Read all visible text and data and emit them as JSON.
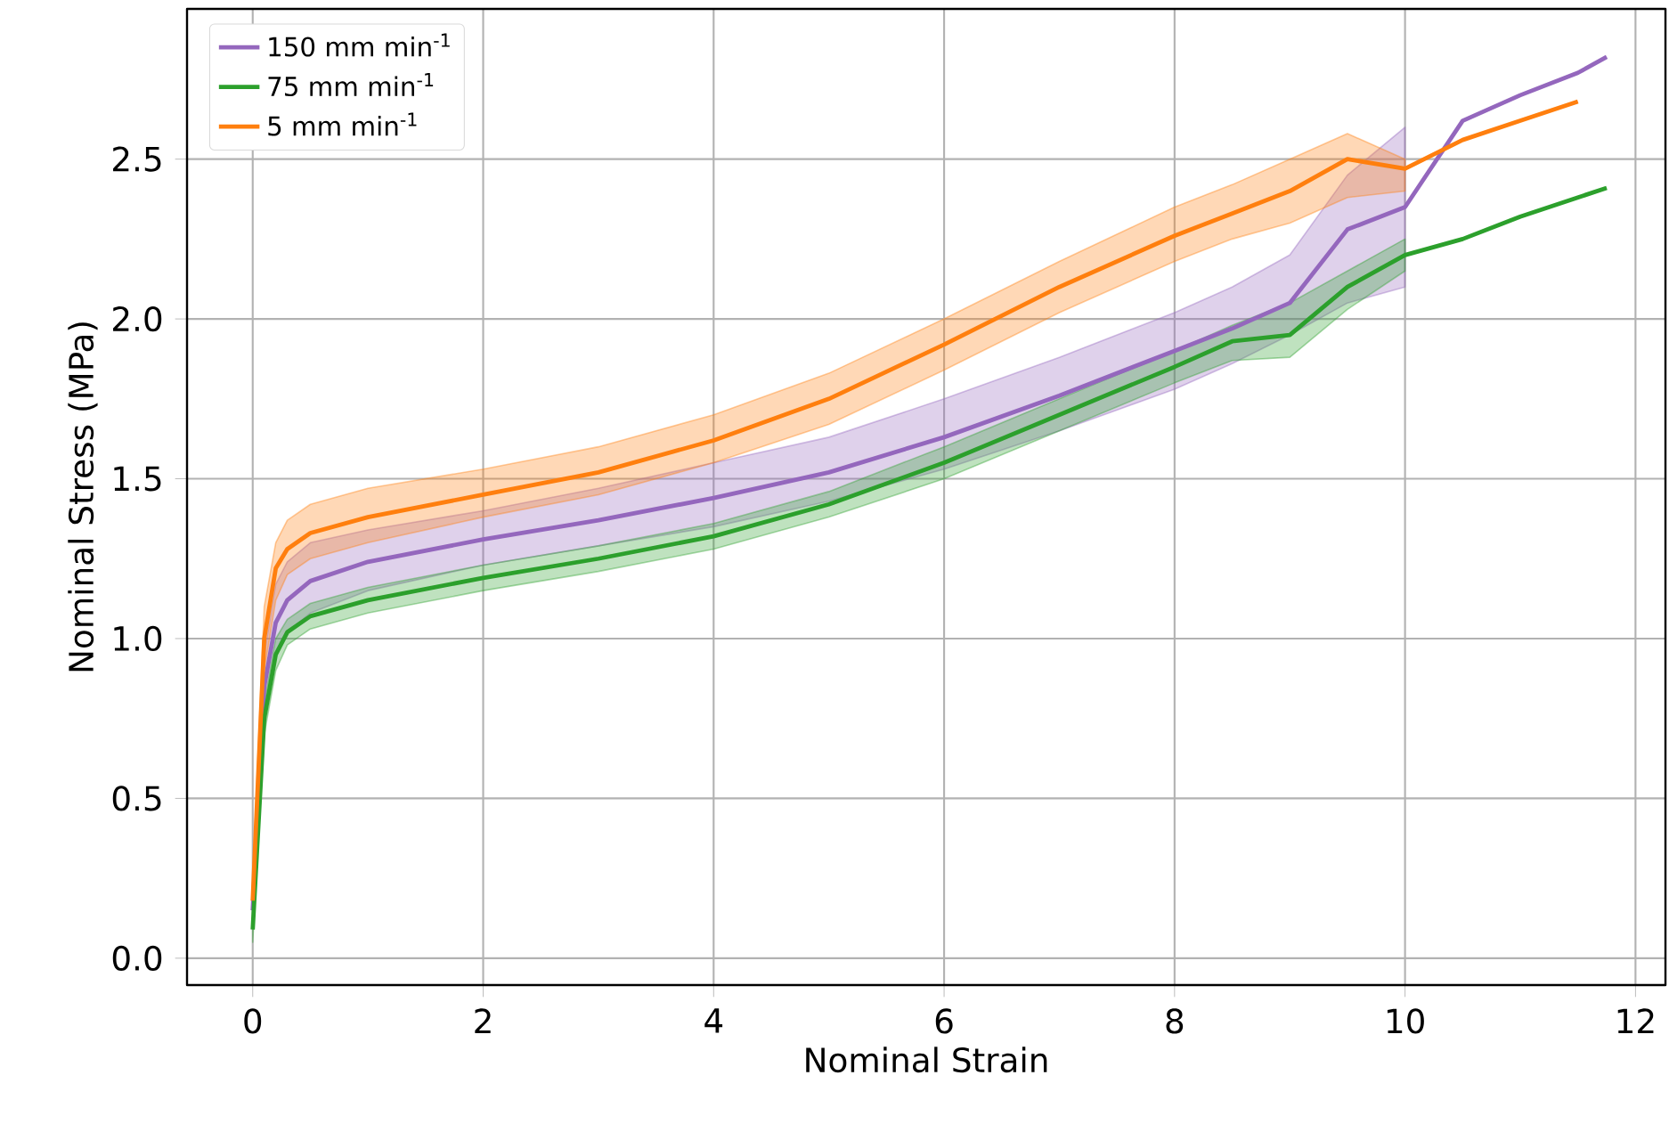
{
  "chart_data": {
    "type": "line",
    "xlabel": "Nominal Strain",
    "ylabel": "Nominal Stress (MPa)",
    "x": [
      0,
      0.1,
      0.2,
      0.3,
      0.5,
      1,
      2,
      3,
      4,
      5,
      6,
      7,
      8,
      8.5,
      9,
      9.5,
      10,
      10.5,
      11,
      11.5,
      11.75
    ],
    "series": [
      {
        "name": "150 mm min$^{-1}$",
        "color": "#9467bd",
        "values": [
          0.15,
          0.85,
          1.05,
          1.12,
          1.18,
          1.24,
          1.31,
          1.37,
          1.44,
          1.52,
          1.63,
          1.76,
          1.9,
          1.97,
          2.05,
          2.28,
          2.35,
          2.62,
          2.7,
          2.77,
          2.82
        ],
        "lower": [
          0.1,
          0.75,
          0.95,
          1.02,
          1.08,
          1.15,
          1.23,
          1.29,
          1.35,
          1.43,
          1.53,
          1.65,
          1.78,
          1.86,
          1.95,
          2.05,
          2.1,
          null,
          null,
          null,
          null
        ],
        "upper": [
          0.2,
          0.95,
          1.17,
          1.24,
          1.3,
          1.34,
          1.4,
          1.47,
          1.55,
          1.63,
          1.75,
          1.88,
          2.02,
          2.1,
          2.2,
          2.45,
          2.6,
          null,
          null,
          null,
          null
        ]
      },
      {
        "name": "75 mm min$^{-1}$",
        "color": "#2ca02c",
        "values": [
          0.09,
          0.75,
          0.95,
          1.02,
          1.07,
          1.12,
          1.19,
          1.25,
          1.32,
          1.42,
          1.55,
          1.7,
          1.85,
          1.93,
          1.95,
          2.1,
          2.2,
          2.25,
          2.32,
          2.38,
          2.41
        ],
        "lower": [
          0.05,
          0.7,
          0.9,
          0.98,
          1.03,
          1.08,
          1.15,
          1.21,
          1.28,
          1.38,
          1.5,
          1.65,
          1.8,
          1.87,
          1.88,
          2.03,
          2.15,
          null,
          null,
          null,
          null
        ],
        "upper": [
          0.13,
          0.8,
          1.0,
          1.06,
          1.11,
          1.16,
          1.23,
          1.29,
          1.36,
          1.46,
          1.6,
          1.75,
          1.9,
          1.98,
          2.05,
          2.15,
          2.25,
          null,
          null,
          null,
          null
        ]
      },
      {
        "name": "5 mm min$^{-1}$",
        "color": "#ff7f0e",
        "x": [
          0,
          0.1,
          0.2,
          0.3,
          0.5,
          1,
          2,
          3,
          4,
          5,
          6,
          7,
          8,
          8.5,
          9,
          9.5,
          10,
          10.5,
          11,
          11.5
        ],
        "values": [
          0.18,
          1.0,
          1.22,
          1.28,
          1.33,
          1.38,
          1.45,
          1.52,
          1.62,
          1.75,
          1.92,
          2.1,
          2.26,
          2.33,
          2.4,
          2.5,
          2.47,
          2.56,
          2.62,
          2.68
        ],
        "lower": [
          0.12,
          0.9,
          1.12,
          1.2,
          1.25,
          1.3,
          1.38,
          1.45,
          1.55,
          1.67,
          1.84,
          2.02,
          2.18,
          2.25,
          2.3,
          2.38,
          2.4,
          null,
          null,
          null
        ],
        "upper": [
          0.24,
          1.1,
          1.3,
          1.37,
          1.42,
          1.47,
          1.53,
          1.6,
          1.7,
          1.83,
          2.0,
          2.18,
          2.35,
          2.42,
          2.5,
          2.58,
          2.5,
          null,
          null,
          null
        ]
      }
    ],
    "xlim": [
      -0.57,
      12.26
    ],
    "ylim": [
      -0.084,
      2.97
    ],
    "xticks": [
      0,
      2,
      4,
      6,
      8,
      10,
      12
    ],
    "yticks": [
      {
        "value": 0,
        "label": "0.0"
      },
      {
        "value": 0.5,
        "label": "0.5"
      },
      {
        "value": 1,
        "label": "1.0"
      },
      {
        "value": 1.5,
        "label": "1.5"
      },
      {
        "value": 2,
        "label": "2.0"
      },
      {
        "value": 2.5,
        "label": "2.5"
      }
    ],
    "grid": true,
    "legend": "top left"
  }
}
